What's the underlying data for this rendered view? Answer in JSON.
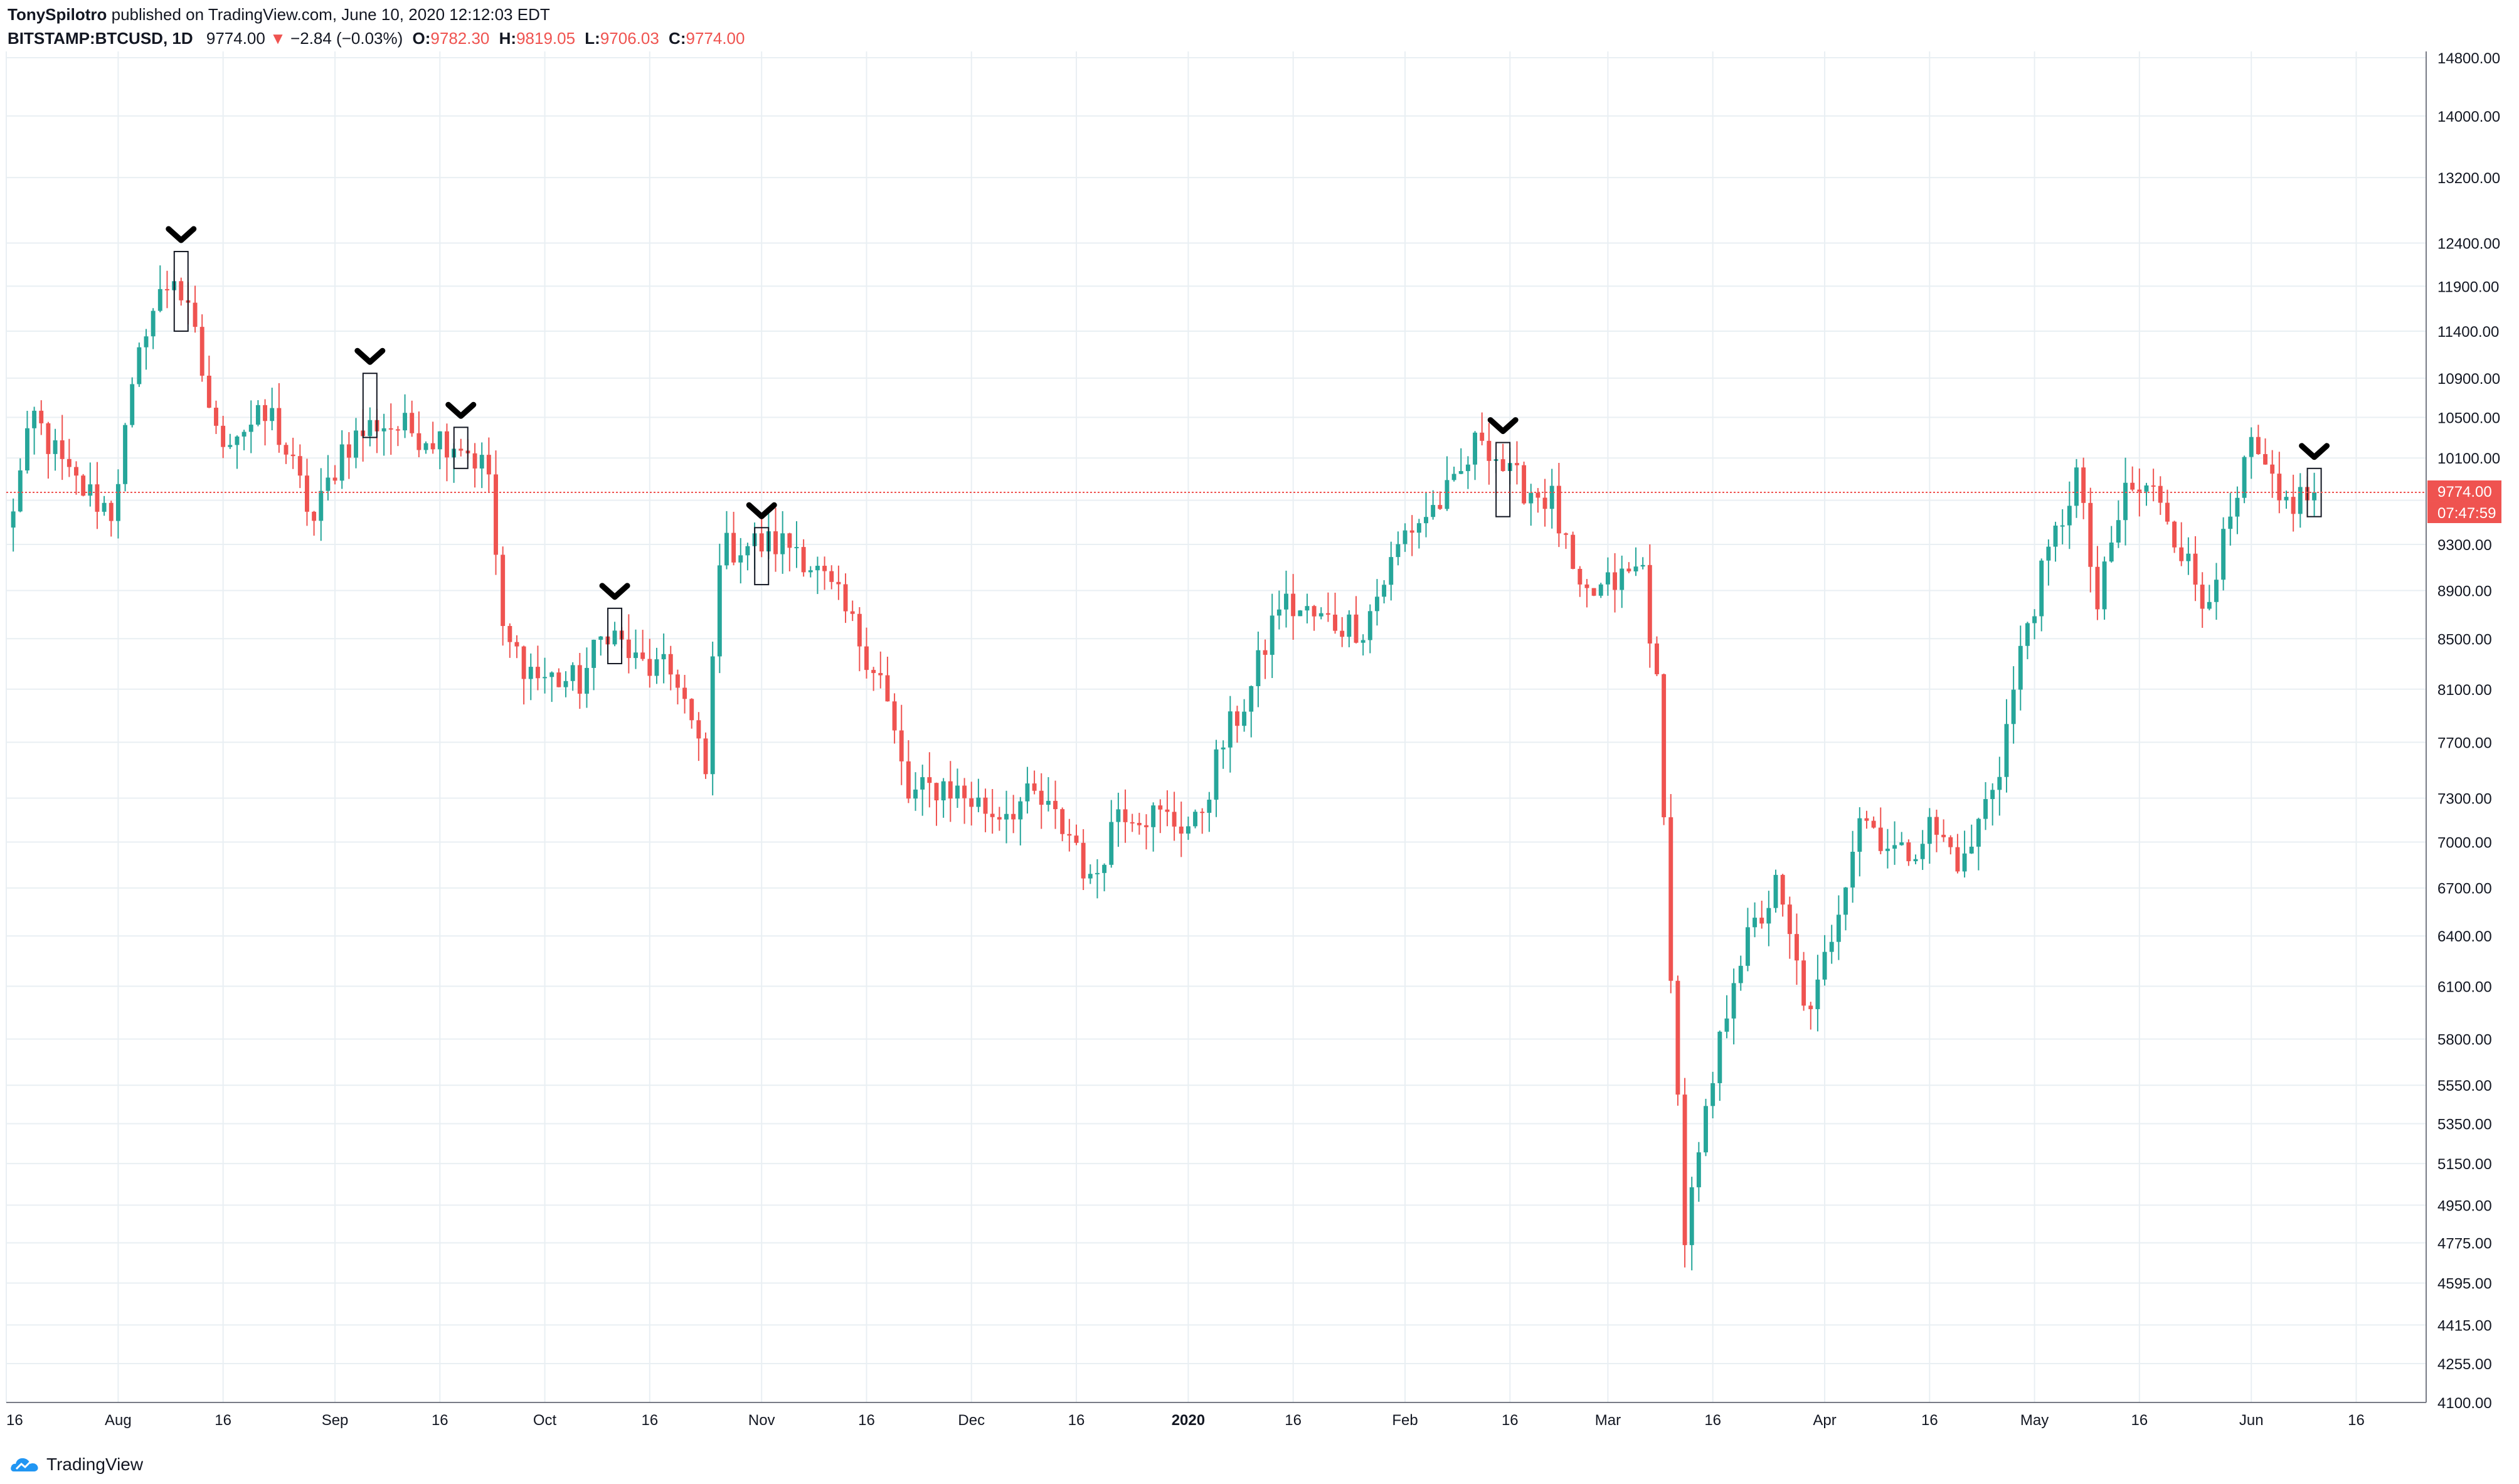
{
  "header": {
    "author": "TonySpilotro",
    "published_text": "published on TradingView.com, June 10, 2020 12:12:03 EDT",
    "symbol": "BITSTAMP:BTCUSD, 1D",
    "last": "9774.00",
    "change": "−2.84 (−0.03%)",
    "open_label": "O:",
    "open": "9782.30",
    "high_label": "H:",
    "high": "9819.05",
    "low_label": "L:",
    "low": "9706.03",
    "close_label": "C:",
    "close": "9774.00"
  },
  "footer": {
    "brand": "TradingView"
  },
  "colors": {
    "up": "#26a69a",
    "down": "#ef5350",
    "grid": "#e9eff3",
    "price_line": "#ef5350",
    "text": "#131722"
  },
  "chart_data": {
    "type": "candlestick",
    "scale": "log",
    "ylim": [
      4100,
      14800
    ],
    "grid": true,
    "y_ticks": [
      "14800.00",
      "14000.00",
      "13200.00",
      "12400.00",
      "11900.00",
      "11400.00",
      "10900.00",
      "10500.00",
      "10100.00",
      "9700.00",
      "9300.00",
      "8900.00",
      "8500.00",
      "8100.00",
      "7700.00",
      "7300.00",
      "7000.00",
      "6700.00",
      "6400.00",
      "6100.00",
      "5800.00",
      "5550.00",
      "5350.00",
      "5150.00",
      "4950.00",
      "4775.00",
      "4595.00",
      "4415.00",
      "4255.00",
      "4100.00"
    ],
    "x_ticks": [
      {
        "label": "16",
        "date": "2019-07-16"
      },
      {
        "label": "Aug",
        "date": "2019-08-01"
      },
      {
        "label": "16",
        "date": "2019-08-16"
      },
      {
        "label": "Sep",
        "date": "2019-09-01"
      },
      {
        "label": "16",
        "date": "2019-09-16"
      },
      {
        "label": "Oct",
        "date": "2019-10-01"
      },
      {
        "label": "16",
        "date": "2019-10-16"
      },
      {
        "label": "Nov",
        "date": "2019-11-01"
      },
      {
        "label": "16",
        "date": "2019-11-16"
      },
      {
        "label": "Dec",
        "date": "2019-12-01"
      },
      {
        "label": "16",
        "date": "2019-12-16"
      },
      {
        "label": "2020",
        "date": "2020-01-01",
        "bold": true
      },
      {
        "label": "16",
        "date": "2020-01-16"
      },
      {
        "label": "Feb",
        "date": "2020-02-01"
      },
      {
        "label": "16",
        "date": "2020-02-16"
      },
      {
        "label": "Mar",
        "date": "2020-03-01"
      },
      {
        "label": "16",
        "date": "2020-03-16"
      },
      {
        "label": "Apr",
        "date": "2020-04-01"
      },
      {
        "label": "16",
        "date": "2020-04-16"
      },
      {
        "label": "May",
        "date": "2020-05-01"
      },
      {
        "label": "16",
        "date": "2020-05-16"
      },
      {
        "label": "Jun",
        "date": "2020-06-01"
      },
      {
        "label": "16",
        "date": "2020-06-16"
      }
    ],
    "x_range": [
      "2019-07-16",
      "2020-06-26"
    ],
    "last_price": {
      "value": 9774.0,
      "label": "9774.00",
      "countdown": "07:47:59"
    },
    "closes": [
      {
        "date": "2019-07-16",
        "close": 9400
      },
      {
        "date": "2019-07-20",
        "close": 10500
      },
      {
        "date": "2019-07-25",
        "close": 9900
      },
      {
        "date": "2019-07-31",
        "close": 9600
      },
      {
        "date": "2019-08-05",
        "close": 11500
      },
      {
        "date": "2019-08-09",
        "close": 12050
      },
      {
        "date": "2019-08-12",
        "close": 11300
      },
      {
        "date": "2019-08-15",
        "close": 10300
      },
      {
        "date": "2019-08-19",
        "close": 10400
      },
      {
        "date": "2019-08-23",
        "close": 10500
      },
      {
        "date": "2019-08-29",
        "close": 9500
      },
      {
        "date": "2019-09-02",
        "close": 10200
      },
      {
        "date": "2019-09-07",
        "close": 10450
      },
      {
        "date": "2019-09-13",
        "close": 10350
      },
      {
        "date": "2019-09-19",
        "close": 10250
      },
      {
        "date": "2019-09-23",
        "close": 9950
      },
      {
        "date": "2019-09-25",
        "close": 8500
      },
      {
        "date": "2019-09-30",
        "close": 8200
      },
      {
        "date": "2019-10-06",
        "close": 8150
      },
      {
        "date": "2019-10-10",
        "close": 8600
      },
      {
        "date": "2019-10-14",
        "close": 8300
      },
      {
        "date": "2019-10-20",
        "close": 8200
      },
      {
        "date": "2019-10-24",
        "close": 7450
      },
      {
        "date": "2019-10-26",
        "close": 9250
      },
      {
        "date": "2019-10-30",
        "close": 9300
      },
      {
        "date": "2019-11-06",
        "close": 9300
      },
      {
        "date": "2019-11-12",
        "close": 8800
      },
      {
        "date": "2019-11-18",
        "close": 8200
      },
      {
        "date": "2019-11-22",
        "close": 7300
      },
      {
        "date": "2019-11-27",
        "close": 7400
      },
      {
        "date": "2019-12-04",
        "close": 7200
      },
      {
        "date": "2019-12-10",
        "close": 7300
      },
      {
        "date": "2019-12-16",
        "close": 7000
      },
      {
        "date": "2019-12-18",
        "close": 6700
      },
      {
        "date": "2019-12-22",
        "close": 7250
      },
      {
        "date": "2020-01-02",
        "close": 7100
      },
      {
        "date": "2020-01-06",
        "close": 7700
      },
      {
        "date": "2020-01-10",
        "close": 8100
      },
      {
        "date": "2020-01-14",
        "close": 8800
      },
      {
        "date": "2020-01-20",
        "close": 8650
      },
      {
        "date": "2020-01-26",
        "close": 8600
      },
      {
        "date": "2020-02-01",
        "close": 9400
      },
      {
        "date": "2020-02-08",
        "close": 9800
      },
      {
        "date": "2020-02-12",
        "close": 10350
      },
      {
        "date": "2020-02-16",
        "close": 9900
      },
      {
        "date": "2020-02-22",
        "close": 9700
      },
      {
        "date": "2020-02-26",
        "close": 8800
      },
      {
        "date": "2020-03-06",
        "close": 9100
      },
      {
        "date": "2020-03-08",
        "close": 8100
      },
      {
        "date": "2020-03-12",
        "close": 4800
      },
      {
        "date": "2020-03-19",
        "close": 6200
      },
      {
        "date": "2020-03-25",
        "close": 6700
      },
      {
        "date": "2020-03-30",
        "close": 5900
      },
      {
        "date": "2020-04-06",
        "close": 7200
      },
      {
        "date": "2020-04-12",
        "close": 6900
      },
      {
        "date": "2020-04-16",
        "close": 7100
      },
      {
        "date": "2020-04-21",
        "close": 6850
      },
      {
        "date": "2020-04-26",
        "close": 7550
      },
      {
        "date": "2020-04-30",
        "close": 8650
      },
      {
        "date": "2020-05-07",
        "close": 9950
      },
      {
        "date": "2020-05-10",
        "close": 8750
      },
      {
        "date": "2020-05-14",
        "close": 9800
      },
      {
        "date": "2020-05-19",
        "close": 9750
      },
      {
        "date": "2020-05-25",
        "close": 8800
      },
      {
        "date": "2020-05-29",
        "close": 9450
      },
      {
        "date": "2020-06-01",
        "close": 10200
      },
      {
        "date": "2020-06-05",
        "close": 9650
      },
      {
        "date": "2020-06-10",
        "close": 9774
      }
    ],
    "markers": [
      {
        "date": "2019-08-10",
        "high": 12300,
        "low": 11400
      },
      {
        "date": "2019-09-06",
        "high": 10950,
        "low": 10300
      },
      {
        "date": "2019-09-19",
        "high": 10400,
        "low": 10000
      },
      {
        "date": "2019-10-11",
        "high": 8750,
        "low": 8300
      },
      {
        "date": "2019-11-01",
        "high": 9450,
        "low": 8950
      },
      {
        "date": "2020-02-15",
        "high": 10250,
        "low": 9550
      },
      {
        "date": "2020-06-10",
        "high": 10000,
        "low": 9550
      }
    ]
  }
}
